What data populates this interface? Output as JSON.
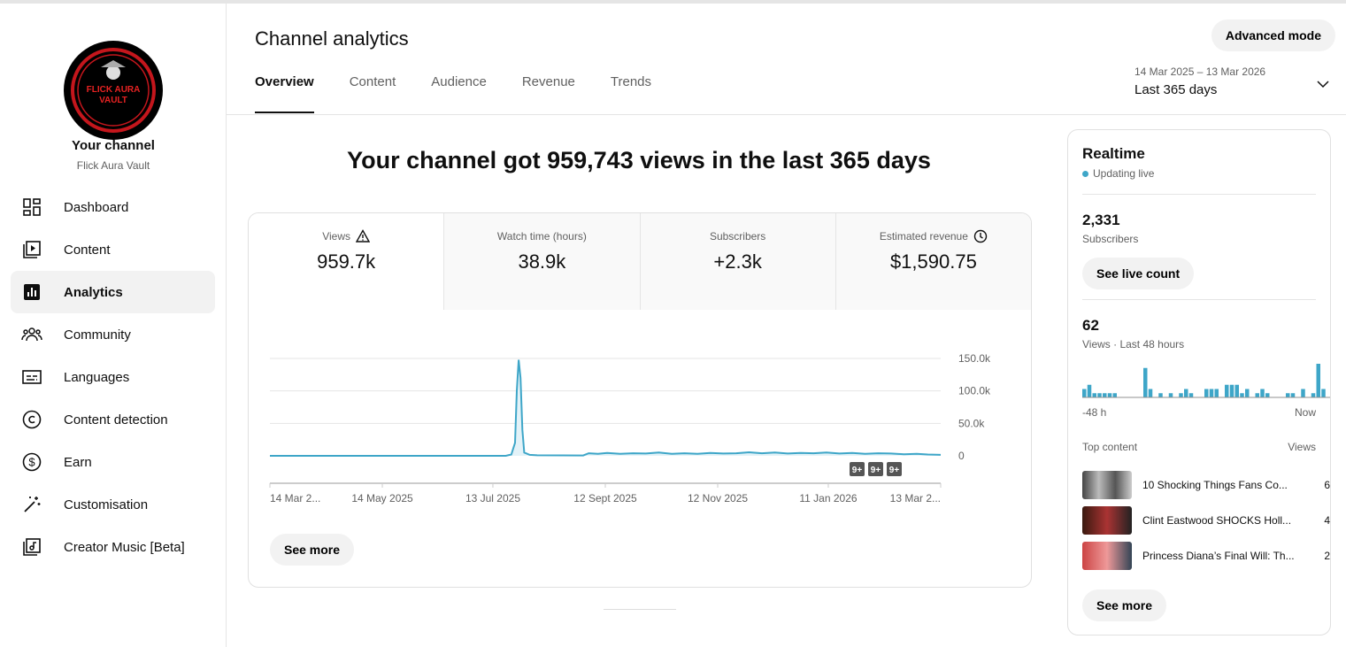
{
  "sidebar": {
    "logo_text": "FLICK AURA VAULT",
    "title": "Your channel",
    "channel_name": "Flick Aura Vault",
    "items": [
      {
        "label": "Dashboard",
        "icon": "dashboard-icon"
      },
      {
        "label": "Content",
        "icon": "content-icon"
      },
      {
        "label": "Analytics",
        "icon": "analytics-icon",
        "active": true
      },
      {
        "label": "Community",
        "icon": "community-icon"
      },
      {
        "label": "Languages",
        "icon": "subtitles-icon"
      },
      {
        "label": "Content detection",
        "icon": "copyright-icon"
      },
      {
        "label": "Earn",
        "icon": "dollar-icon"
      },
      {
        "label": "Customisation",
        "icon": "magic-wand-icon"
      },
      {
        "label": "Creator Music [Beta]",
        "icon": "music-icon"
      }
    ]
  },
  "header": {
    "title": "Channel analytics",
    "advanced_mode": "Advanced mode",
    "tabs": [
      "Overview",
      "Content",
      "Audience",
      "Revenue",
      "Trends"
    ],
    "date_range": "14 Mar 2025 – 13 Mar 2026",
    "date_select": "Last 365 days"
  },
  "main": {
    "headline": "Your channel got 959,743 views in the last 365 days",
    "metrics": [
      {
        "label": "Views",
        "value": "959.7k",
        "icon": "warning-icon"
      },
      {
        "label": "Watch time (hours)",
        "value": "38.9k"
      },
      {
        "label": "Subscribers",
        "value": "+2.3k"
      },
      {
        "label": "Estimated revenue",
        "value": "$1,590.75",
        "icon": "clock-icon"
      }
    ],
    "see_more": "See more",
    "badges": [
      "9+",
      "9+",
      "9+"
    ]
  },
  "chart_data": {
    "type": "area",
    "color": "#3ea6c8",
    "grid": true,
    "xlim": [
      "2025-03-14",
      "2026-03-13"
    ],
    "ylim": [
      0,
      150000
    ],
    "yticks": [
      {
        "v": 150000,
        "label": "150.0k"
      },
      {
        "v": 100000,
        "label": "100.0k"
      },
      {
        "v": 50000,
        "label": "50.0k"
      },
      {
        "v": 0,
        "label": "0"
      }
    ],
    "xticks": [
      {
        "d": "2025-03-14",
        "label": "14 Mar 2..."
      },
      {
        "d": "2025-05-14",
        "label": "14 May 2025"
      },
      {
        "d": "2025-07-13",
        "label": "13 Jul 2025"
      },
      {
        "d": "2025-09-12",
        "label": "12 Sept 2025"
      },
      {
        "d": "2025-11-12",
        "label": "12 Nov 2025"
      },
      {
        "d": "2026-01-11",
        "label": "11 Jan 2026"
      },
      {
        "d": "2026-03-13",
        "label": "13 Mar 2..."
      }
    ],
    "points": [
      [
        "2025-03-14",
        0
      ],
      [
        "2025-07-20",
        0
      ],
      [
        "2025-07-23",
        2000
      ],
      [
        "2025-07-25",
        20000
      ],
      [
        "2025-07-26",
        100000
      ],
      [
        "2025-07-27",
        148000
      ],
      [
        "2025-07-28",
        120000
      ],
      [
        "2025-07-29",
        40000
      ],
      [
        "2025-07-30",
        5000
      ],
      [
        "2025-08-02",
        1500
      ],
      [
        "2025-08-06",
        800
      ],
      [
        "2025-08-31",
        500
      ],
      [
        "2025-09-03",
        4000
      ],
      [
        "2025-09-08",
        3000
      ],
      [
        "2025-09-13",
        4500
      ],
      [
        "2025-09-20",
        3000
      ],
      [
        "2025-09-27",
        4000
      ],
      [
        "2025-10-04",
        3500
      ],
      [
        "2025-10-11",
        5000
      ],
      [
        "2025-10-18",
        3000
      ],
      [
        "2025-10-25",
        4000
      ],
      [
        "2025-11-01",
        3000
      ],
      [
        "2025-11-08",
        4500
      ],
      [
        "2025-11-15",
        3500
      ],
      [
        "2025-11-22",
        4000
      ],
      [
        "2025-11-29",
        5500
      ],
      [
        "2025-12-06",
        4000
      ],
      [
        "2025-12-13",
        5000
      ],
      [
        "2025-12-20",
        3500
      ],
      [
        "2025-12-27",
        4500
      ],
      [
        "2026-01-03",
        4000
      ],
      [
        "2026-01-10",
        5000
      ],
      [
        "2026-01-17",
        3500
      ],
      [
        "2026-01-24",
        4500
      ],
      [
        "2026-01-31",
        3000
      ],
      [
        "2026-02-07",
        4000
      ],
      [
        "2026-02-14",
        3500
      ],
      [
        "2026-02-21",
        2500
      ],
      [
        "2026-02-28",
        3000
      ],
      [
        "2026-03-06",
        2000
      ],
      [
        "2026-03-13",
        1500
      ]
    ]
  },
  "realtime": {
    "title": "Realtime",
    "status": "Updating live",
    "subscribers": "2,331",
    "subscribers_label": "Subscribers",
    "see_live": "See live count",
    "views": "62",
    "views_label": "Views · Last 48 hours",
    "start_label": "-48 h",
    "end_label": "Now",
    "hourly_views": [
      2,
      3,
      1,
      1,
      1,
      1,
      1,
      0,
      0,
      0,
      0,
      0,
      7,
      2,
      0,
      1,
      0,
      1,
      0,
      1,
      2,
      1,
      0,
      0,
      2,
      2,
      2,
      0,
      3,
      3,
      3,
      1,
      2,
      0,
      1,
      2,
      1,
      0,
      0,
      0,
      1,
      1,
      0,
      2,
      0,
      1,
      8,
      2
    ],
    "top_content_label": "Top content",
    "views_col": "Views",
    "top_content": [
      {
        "title": "10 Shocking Things Fans Co...",
        "views": "6"
      },
      {
        "title": "Clint Eastwood SHOCKS Holl...",
        "views": "4"
      },
      {
        "title": "Princess Diana’s Final Will: Th...",
        "views": "2"
      }
    ],
    "see_more": "See more"
  }
}
